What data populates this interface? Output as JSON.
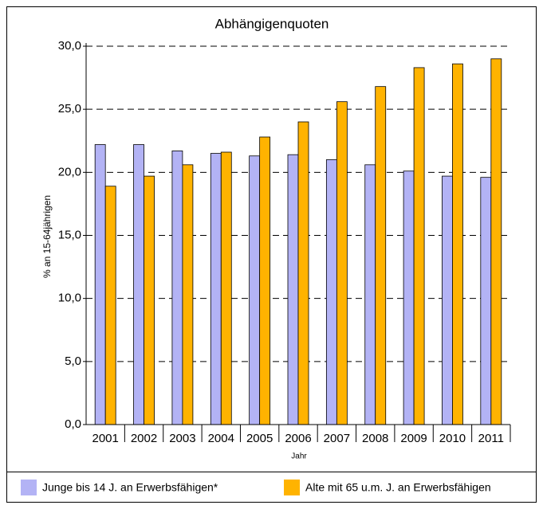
{
  "chart_data": {
    "type": "bar",
    "title": "Abhängigenquoten",
    "x_label": "Jahr",
    "y_label": "% an 15-64jährigen",
    "categories": [
      "2001",
      "2002",
      "2003",
      "2004",
      "2005",
      "2006",
      "2007",
      "2008",
      "2009",
      "2010",
      "2011"
    ],
    "series": [
      {
        "name": "Junge bis 14 J. an Erwerbsfähigen*",
        "color": "#b3b3f5",
        "values": [
          22.2,
          22.2,
          21.7,
          21.5,
          21.3,
          21.4,
          21.0,
          20.6,
          20.1,
          19.7,
          19.6
        ]
      },
      {
        "name": "Alte mit 65 u.m. J. an Erwerbsfähigen",
        "color": "#ffb300",
        "values": [
          18.9,
          19.7,
          20.6,
          21.6,
          22.8,
          24.0,
          25.6,
          26.8,
          28.3,
          28.6,
          29.0
        ]
      }
    ],
    "ylim": [
      0,
      30
    ],
    "yticks": [
      {
        "value": 0,
        "label": "0,0"
      },
      {
        "value": 5,
        "label": "5,0"
      },
      {
        "value": 10,
        "label": "10,0"
      },
      {
        "value": 15,
        "label": "15,0"
      },
      {
        "value": 20,
        "label": "20,0"
      },
      {
        "value": 25,
        "label": "25,0"
      },
      {
        "value": 30,
        "label": "30,0"
      }
    ],
    "grid": true,
    "legend": "bottom"
  }
}
